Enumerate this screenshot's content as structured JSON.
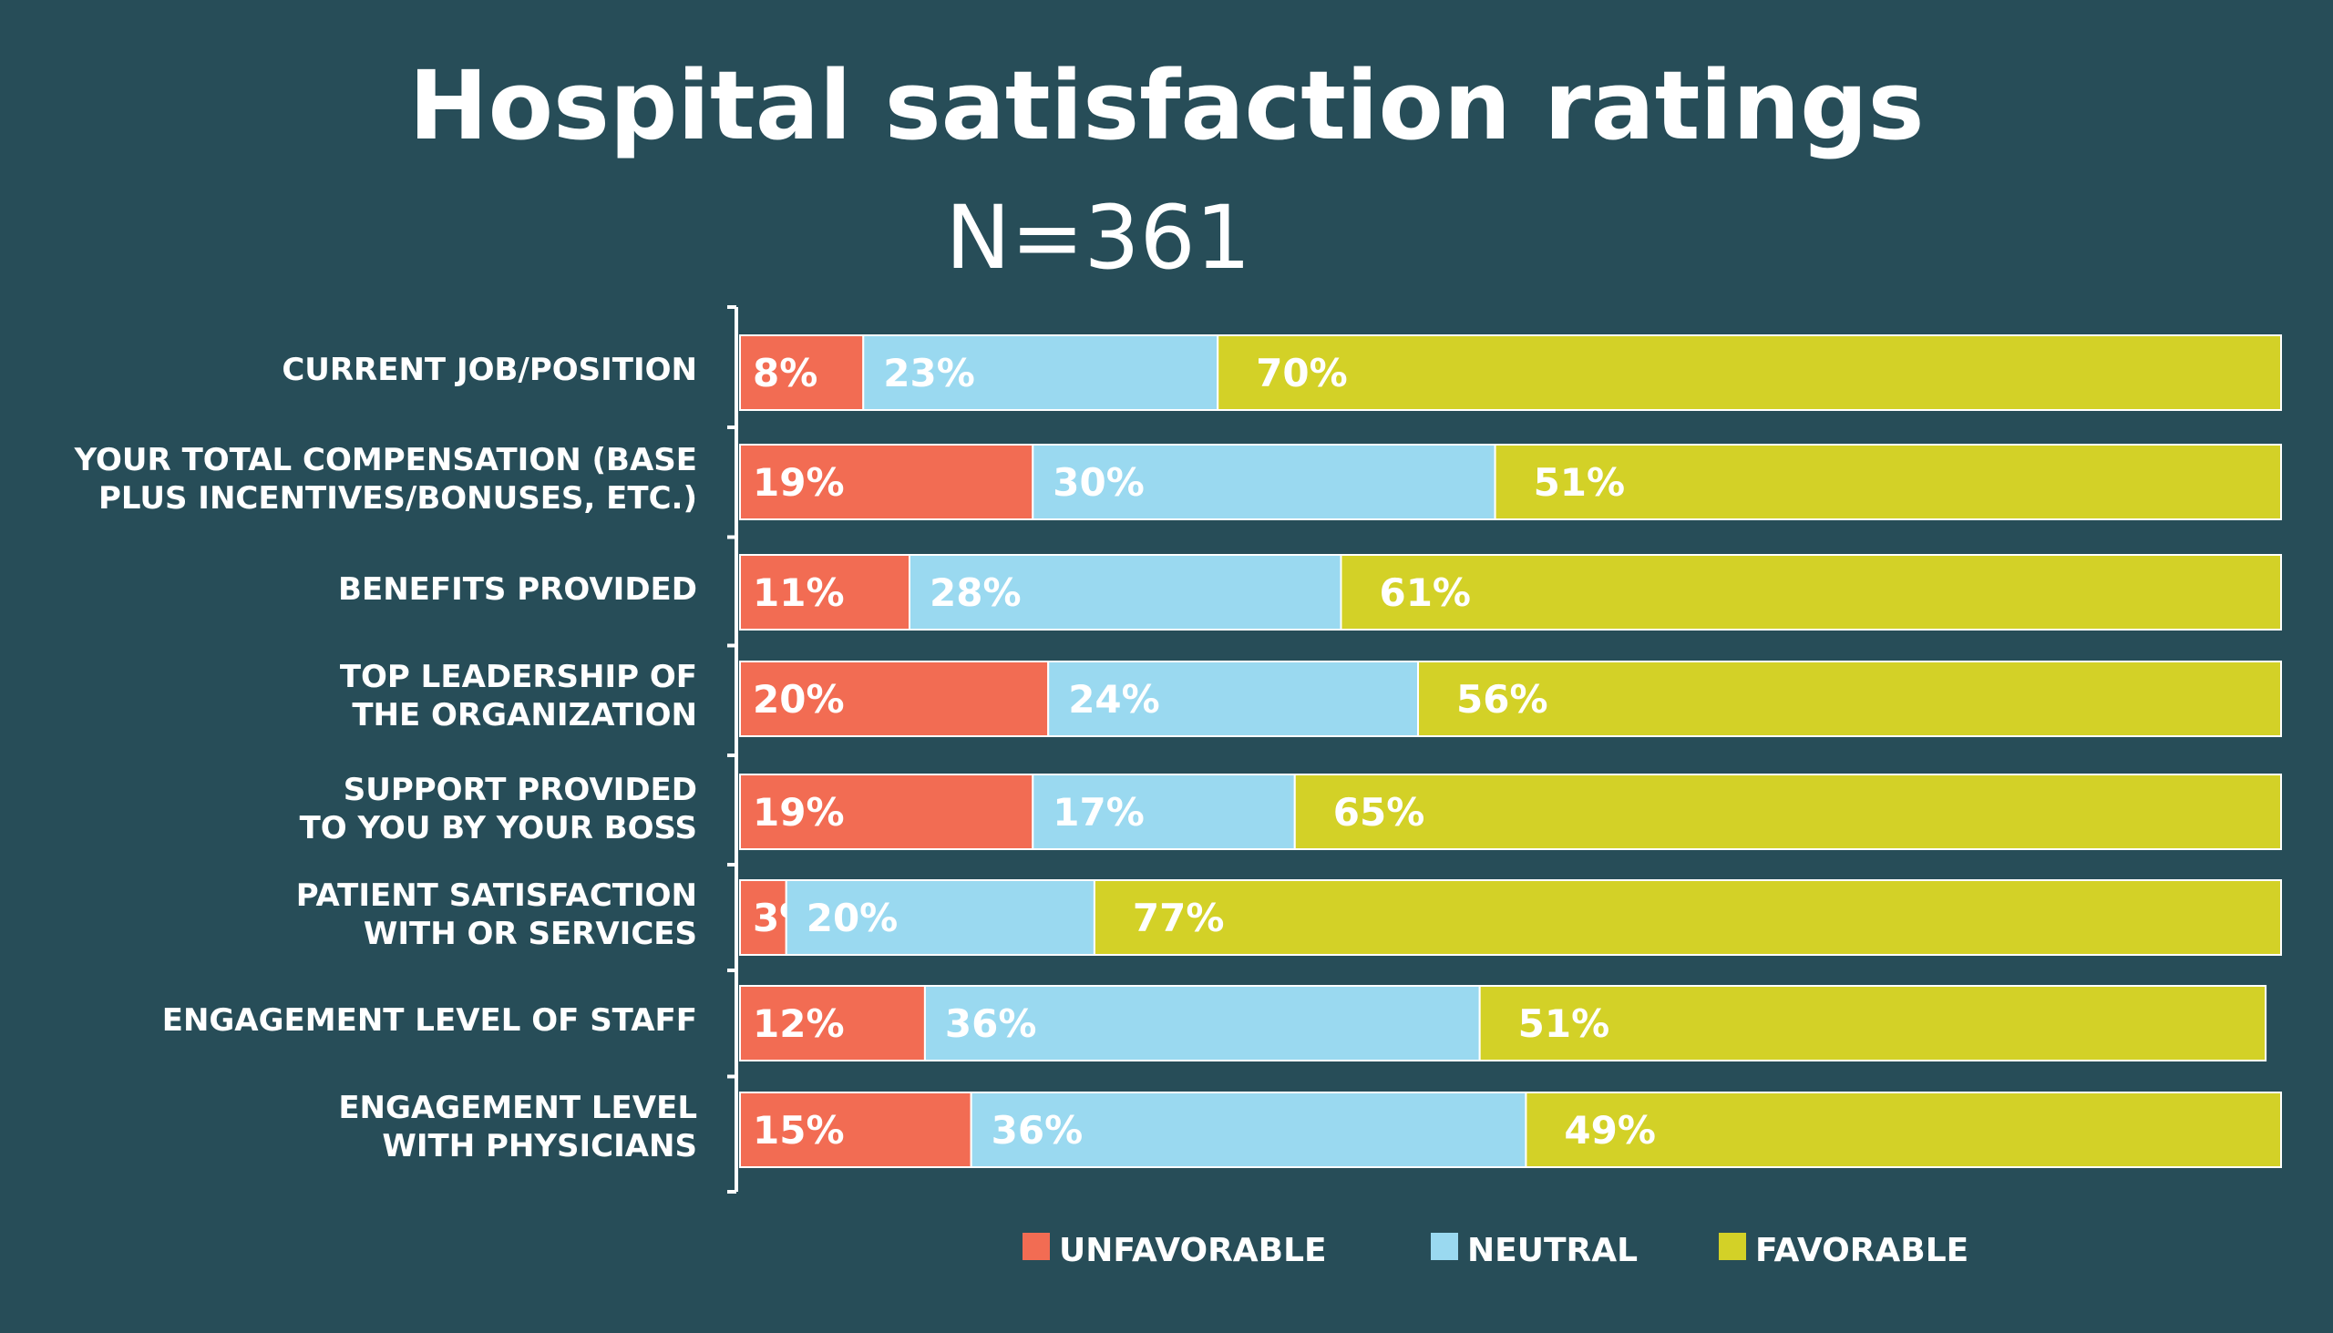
{
  "chart_data": {
    "type": "bar",
    "orientation": "horizontal",
    "stacked": true,
    "title": "Hospital satisfaction ratings",
    "subtitle": "N=361",
    "categories": [
      [
        "CURRENT JOB/POSITION"
      ],
      [
        "YOUR TOTAL COMPENSATION (BASE",
        "PLUS INCENTIVES/BONUSES, ETC.)"
      ],
      [
        "BENEFITS PROVIDED"
      ],
      [
        "TOP LEADERSHIP OF",
        "THE ORGANIZATION"
      ],
      [
        "SUPPORT PROVIDED",
        "TO YOU BY YOUR BOSS"
      ],
      [
        "PATIENT SATISFACTION",
        "WITH OR SERVICES"
      ],
      [
        "ENGAGEMENT LEVEL OF STAFF"
      ],
      [
        "ENGAGEMENT LEVEL",
        "WITH PHYSICIANS"
      ]
    ],
    "series": [
      {
        "name": "UNFAVORABLE",
        "color": "#f26c53",
        "values": [
          8,
          19,
          11,
          20,
          19,
          3,
          12,
          15
        ]
      },
      {
        "name": "NEUTRAL",
        "color": "#9ad9f0",
        "values": [
          23,
          30,
          28,
          24,
          17,
          20,
          36,
          36
        ]
      },
      {
        "name": "FAVORABLE",
        "color": "#d3d127",
        "values": [
          70,
          51,
          61,
          56,
          65,
          77,
          51,
          49
        ]
      }
    ],
    "value_suffix": "%",
    "xlim": [
      0,
      100
    ],
    "grid": false,
    "legend_position": "bottom"
  },
  "colors": {
    "background": "#274d58",
    "bar_border": "#ffffff",
    "text": "#ffffff"
  }
}
